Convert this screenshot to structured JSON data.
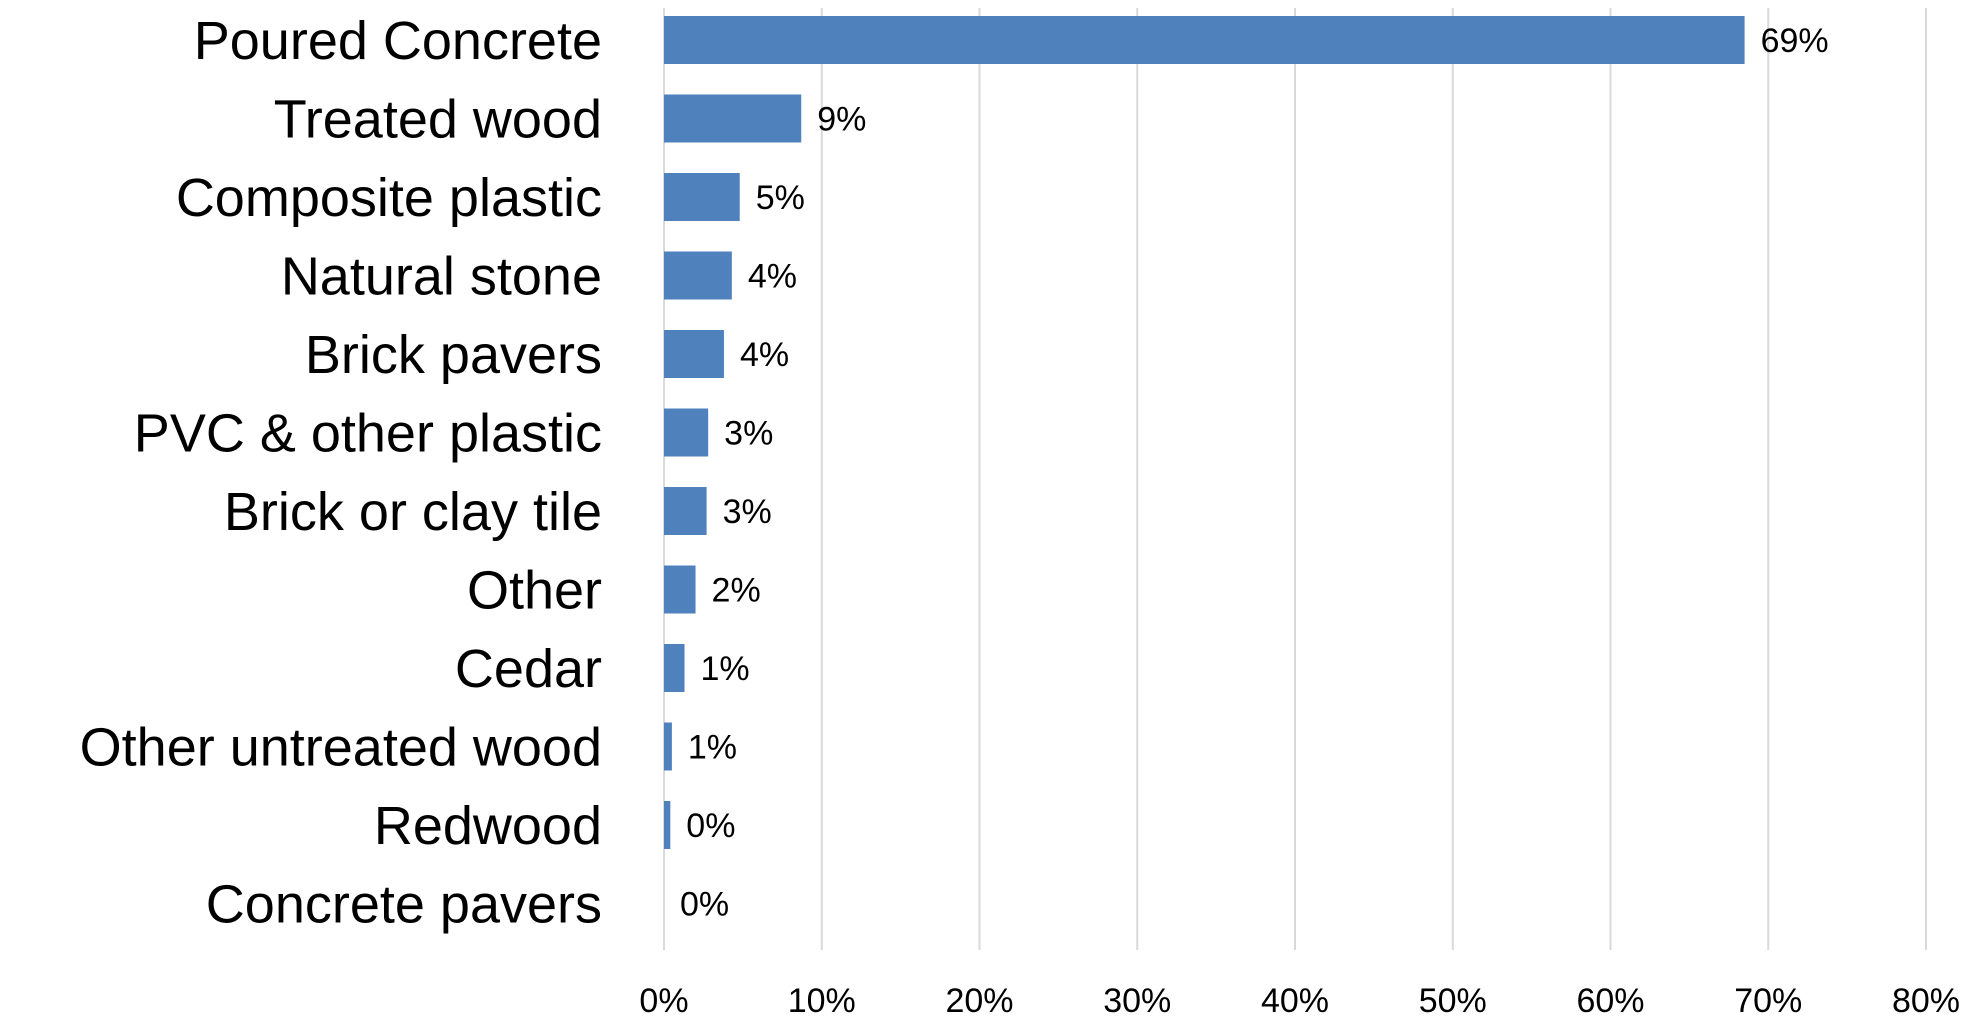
{
  "chart_data": {
    "type": "bar",
    "orientation": "horizontal",
    "categories": [
      "Poured Concrete",
      "Treated wood",
      "Composite plastic",
      "Natural stone",
      "Brick pavers",
      "PVC & other plastic",
      "Brick or clay tile",
      "Other",
      "Cedar",
      "Other untreated wood",
      "Redwood",
      "Concrete pavers"
    ],
    "values": [
      68.5,
      8.7,
      4.8,
      4.3,
      3.8,
      2.8,
      2.7,
      2.0,
      1.3,
      0.5,
      0.4,
      0.0
    ],
    "value_labels": [
      "69%",
      "9%",
      "5%",
      "4%",
      "4%",
      "3%",
      "3%",
      "2%",
      "1%",
      "1%",
      "0%",
      "0%"
    ],
    "xlim": [
      0,
      80
    ],
    "x_ticks": [
      "0%",
      "10%",
      "20%",
      "30%",
      "40%",
      "50%",
      "60%",
      "70%",
      "80%"
    ],
    "title": "",
    "xlabel": "",
    "ylabel": "",
    "grid": "vertical",
    "legend": "none",
    "bar_color": "#4f81bd"
  }
}
